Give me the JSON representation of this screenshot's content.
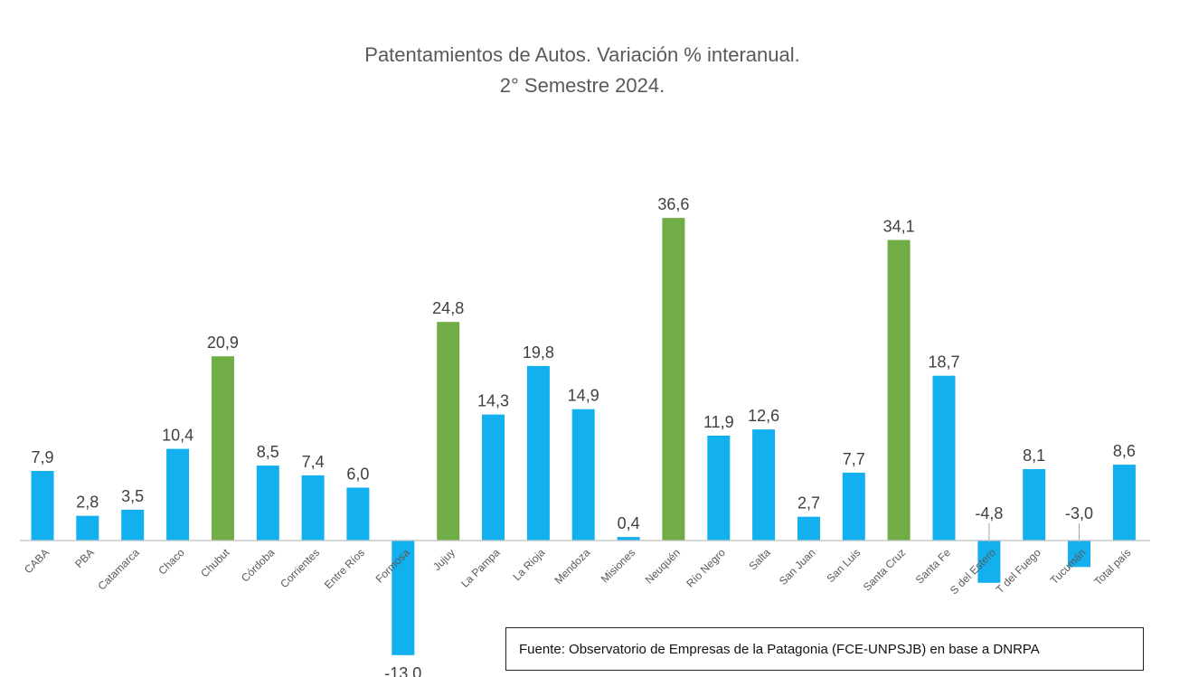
{
  "chart_data": {
    "type": "bar",
    "title": "Patentamientos de Autos. Variación % interanual.",
    "subtitle": "2° Semestre 2024.",
    "categories": [
      "CABA",
      "PBA",
      "Catamarca",
      "Chaco",
      "Chubut",
      "Córdoba",
      "Corrientes",
      "Entre Ríos",
      "Formosa",
      "Jujuy",
      "La Pampa",
      "La Rioja",
      "Mendoza",
      "Misiones",
      "Neuquén",
      "Río Negro",
      "Salta",
      "San Juan",
      "San Luis",
      "Santa Cruz",
      "Santa Fe",
      "S del Estero",
      "T del Fuego",
      "Tucumán",
      "Total país"
    ],
    "values": [
      7.9,
      2.8,
      3.5,
      10.4,
      20.9,
      8.5,
      7.4,
      6.0,
      -13.0,
      24.8,
      14.3,
      19.8,
      14.9,
      0.4,
      36.6,
      11.9,
      12.6,
      2.7,
      7.7,
      34.1,
      18.7,
      -4.8,
      8.1,
      -3.0,
      8.6
    ],
    "value_labels": [
      "7,9",
      "2,8",
      "3,5",
      "10,4",
      "20,9",
      "8,5",
      "7,4",
      "6,0",
      "-13,0",
      "24,8",
      "14,3",
      "19,8",
      "14,9",
      "0,4",
      "36,6",
      "11,9",
      "12,6",
      "2,7",
      "7,7",
      "34,1",
      "18,7",
      "-4,8",
      "8,1",
      "-3,0",
      "8,6"
    ],
    "highlighted": [
      "Chubut",
      "Jujuy",
      "Neuquén",
      "Santa Cruz"
    ],
    "colors": {
      "default": "#12b0ee",
      "highlight": "#70ad47",
      "axis": "#bfbfbf",
      "text": "#404040"
    },
    "xlabel": "",
    "ylabel": "",
    "ylim": [
      -13.0,
      36.6
    ],
    "grid": false,
    "legend": "none"
  },
  "source": "Fuente:  Observatorio de Empresas de  la Patagonia (FCE-UNPSJB)  en base a DNRPA"
}
